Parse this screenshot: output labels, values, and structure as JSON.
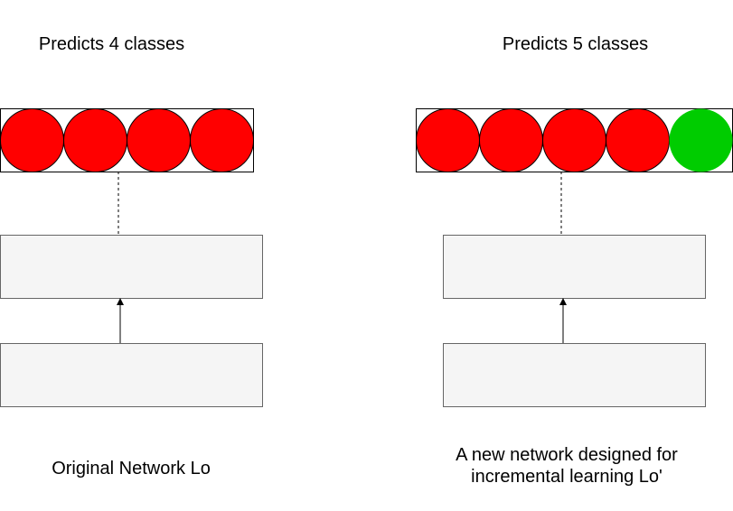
{
  "left_network": {
    "title": "Predicts 4 classes",
    "caption": "Original Network Lo",
    "output_units": [
      "old",
      "old",
      "old",
      "old"
    ]
  },
  "right_network": {
    "title": "Predicts 5 classes",
    "caption_line1": "A new network designed for",
    "caption_line2": "incremental learning Lo'",
    "output_units": [
      "old",
      "old",
      "old",
      "old",
      "new"
    ]
  },
  "colors": {
    "old_class": "#ff0000",
    "new_class": "#00cc00",
    "layer_fill": "#f5f5f5",
    "layer_stroke": "#666666",
    "line": "#000000"
  }
}
